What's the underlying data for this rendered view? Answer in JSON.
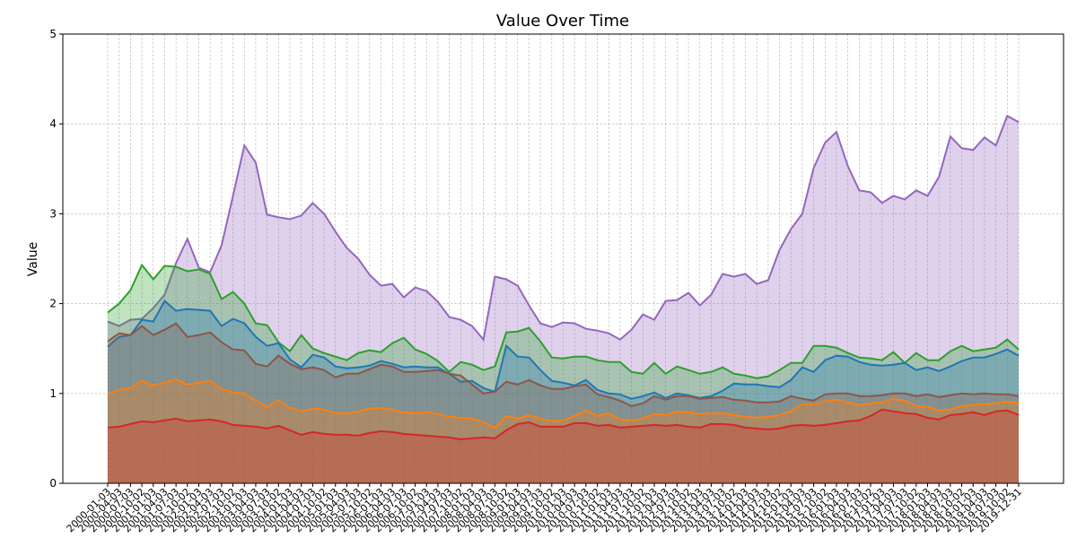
{
  "chart_data": {
    "type": "area",
    "title": "Value Over Time",
    "ylabel": "Value",
    "categories": [
      "2000-01-03",
      "2000-04-03",
      "2000-07-03",
      "2000-10-02",
      "2001-01-03",
      "2001-04-03",
      "2001-07-03",
      "2001-10-02",
      "2002-01-03",
      "2002-04-03",
      "2002-07-03",
      "2002-10-02",
      "2003-01-03",
      "2003-04-03",
      "2003-07-03",
      "2003-10-02",
      "2004-01-03",
      "2004-04-03",
      "2004-07-03",
      "2004-10-02",
      "2005-01-03",
      "2005-04-03",
      "2005-07-03",
      "2005-10-02",
      "2006-01-03",
      "2006-04-03",
      "2006-07-03",
      "2006-10-02",
      "2007-01-03",
      "2007-04-03",
      "2007-07-03",
      "2007-10-02",
      "2008-01-03",
      "2008-04-03",
      "2008-07-03",
      "2008-10-02",
      "2009-01-03",
      "2009-04-03",
      "2009-07-03",
      "2009-10-02",
      "2010-01-03",
      "2010-04-03",
      "2010-07-03",
      "2010-10-02",
      "2011-01-03",
      "2011-04-03",
      "2011-07-03",
      "2011-10-02",
      "2012-01-03",
      "2012-04-03",
      "2012-07-03",
      "2012-10-02",
      "2013-01-03",
      "2013-04-03",
      "2013-07-03",
      "2013-10-02",
      "2014-01-03",
      "2014-04-03",
      "2014-07-03",
      "2014-10-02",
      "2015-01-03",
      "2015-04-03",
      "2015-07-03",
      "2015-10-02",
      "2016-01-03",
      "2016-04-03",
      "2016-07-03",
      "2016-10-02",
      "2017-01-03",
      "2017-04-03",
      "2017-07-03",
      "2017-10-02",
      "2018-01-03",
      "2018-04-03",
      "2018-07-03",
      "2018-10-02",
      "2019-01-03",
      "2019-04-03",
      "2019-07-03",
      "2019-10-02",
      "2019-12-31"
    ],
    "series": [
      {
        "color": "#9467bd",
        "values": [
          1.8,
          1.75,
          1.82,
          1.83,
          1.95,
          2.1,
          2.45,
          2.72,
          2.4,
          2.35,
          2.65,
          3.2,
          3.76,
          3.57,
          2.99,
          2.96,
          2.94,
          2.98,
          3.12,
          3.0,
          2.8,
          2.62,
          2.5,
          2.32,
          2.2,
          2.22,
          2.07,
          2.18,
          2.14,
          2.02,
          1.85,
          1.82,
          1.75,
          1.6,
          2.3,
          2.27,
          2.2,
          1.98,
          1.78,
          1.74,
          1.79,
          1.78,
          1.72,
          1.7,
          1.67,
          1.6,
          1.71,
          1.88,
          1.82,
          2.03,
          2.04,
          2.12,
          1.98,
          2.1,
          2.33,
          2.3,
          2.33,
          2.22,
          2.26,
          2.6,
          2.83,
          3.0,
          3.51,
          3.79,
          3.91,
          3.53,
          3.26,
          3.24,
          3.12,
          3.2,
          3.16,
          3.26,
          3.2,
          3.41,
          3.86,
          3.73,
          3.71,
          3.85,
          3.76,
          4.09,
          4.02
        ]
      },
      {
        "color": "#2ca02c",
        "values": [
          1.9,
          2.0,
          2.15,
          2.43,
          2.27,
          2.42,
          2.41,
          2.36,
          2.38,
          2.33,
          2.05,
          2.13,
          2.0,
          1.78,
          1.76,
          1.57,
          1.47,
          1.65,
          1.5,
          1.45,
          1.41,
          1.37,
          1.45,
          1.48,
          1.46,
          1.56,
          1.62,
          1.49,
          1.44,
          1.36,
          1.24,
          1.35,
          1.32,
          1.26,
          1.3,
          1.68,
          1.69,
          1.73,
          1.58,
          1.4,
          1.39,
          1.41,
          1.41,
          1.37,
          1.35,
          1.35,
          1.24,
          1.22,
          1.34,
          1.22,
          1.3,
          1.26,
          1.22,
          1.24,
          1.29,
          1.22,
          1.2,
          1.17,
          1.19,
          1.26,
          1.34,
          1.34,
          1.53,
          1.53,
          1.51,
          1.45,
          1.4,
          1.39,
          1.37,
          1.46,
          1.34,
          1.45,
          1.37,
          1.37,
          1.47,
          1.53,
          1.47,
          1.49,
          1.51,
          1.6,
          1.49
        ]
      },
      {
        "color": "#1f77b4",
        "values": [
          1.52,
          1.63,
          1.65,
          1.82,
          1.8,
          2.03,
          1.92,
          1.94,
          1.93,
          1.92,
          1.75,
          1.83,
          1.78,
          1.63,
          1.53,
          1.56,
          1.38,
          1.29,
          1.43,
          1.4,
          1.3,
          1.28,
          1.29,
          1.31,
          1.36,
          1.33,
          1.29,
          1.3,
          1.29,
          1.29,
          1.22,
          1.13,
          1.14,
          1.06,
          1.02,
          1.53,
          1.41,
          1.4,
          1.26,
          1.14,
          1.12,
          1.09,
          1.15,
          1.04,
          1.0,
          0.99,
          0.94,
          0.97,
          1.01,
          0.95,
          1.0,
          0.98,
          0.95,
          0.97,
          1.03,
          1.11,
          1.1,
          1.1,
          1.08,
          1.07,
          1.15,
          1.29,
          1.24,
          1.37,
          1.42,
          1.41,
          1.35,
          1.32,
          1.31,
          1.32,
          1.34,
          1.26,
          1.29,
          1.25,
          1.3,
          1.36,
          1.4,
          1.4,
          1.44,
          1.49,
          1.42
        ]
      },
      {
        "color": "#8c564b",
        "values": [
          1.58,
          1.67,
          1.65,
          1.75,
          1.65,
          1.71,
          1.78,
          1.63,
          1.65,
          1.68,
          1.57,
          1.49,
          1.48,
          1.33,
          1.3,
          1.42,
          1.33,
          1.27,
          1.29,
          1.26,
          1.18,
          1.22,
          1.22,
          1.27,
          1.32,
          1.3,
          1.24,
          1.24,
          1.25,
          1.26,
          1.22,
          1.2,
          1.1,
          1.0,
          1.02,
          1.13,
          1.1,
          1.15,
          1.09,
          1.05,
          1.05,
          1.08,
          1.1,
          0.99,
          0.96,
          0.92,
          0.86,
          0.89,
          0.97,
          0.93,
          0.97,
          0.97,
          0.94,
          0.95,
          0.96,
          0.93,
          0.92,
          0.9,
          0.9,
          0.91,
          0.97,
          0.94,
          0.92,
          0.99,
          1.0,
          1.0,
          0.97,
          0.97,
          0.98,
          1.0,
          1.0,
          0.97,
          0.99,
          0.96,
          0.98,
          1.0,
          0.99,
          1.0,
          0.99,
          0.99,
          0.97
        ]
      },
      {
        "color": "#ff7f0e",
        "values": [
          0.99,
          1.04,
          1.06,
          1.14,
          1.09,
          1.12,
          1.16,
          1.1,
          1.12,
          1.14,
          1.05,
          1.01,
          1.0,
          0.92,
          0.85,
          0.92,
          0.84,
          0.8,
          0.83,
          0.82,
          0.78,
          0.78,
          0.8,
          0.83,
          0.84,
          0.82,
          0.79,
          0.78,
          0.79,
          0.77,
          0.74,
          0.73,
          0.72,
          0.68,
          0.62,
          0.75,
          0.72,
          0.76,
          0.72,
          0.69,
          0.7,
          0.75,
          0.81,
          0.75,
          0.78,
          0.71,
          0.7,
          0.72,
          0.77,
          0.76,
          0.8,
          0.79,
          0.77,
          0.78,
          0.78,
          0.76,
          0.74,
          0.73,
          0.74,
          0.76,
          0.8,
          0.88,
          0.88,
          0.91,
          0.93,
          0.9,
          0.87,
          0.89,
          0.9,
          0.94,
          0.92,
          0.86,
          0.85,
          0.81,
          0.82,
          0.86,
          0.87,
          0.88,
          0.89,
          0.91,
          0.89
        ]
      },
      {
        "color": "#d62728",
        "values": [
          0.62,
          0.63,
          0.66,
          0.69,
          0.68,
          0.7,
          0.72,
          0.69,
          0.7,
          0.71,
          0.69,
          0.65,
          0.64,
          0.63,
          0.61,
          0.64,
          0.59,
          0.54,
          0.57,
          0.55,
          0.54,
          0.54,
          0.53,
          0.56,
          0.58,
          0.57,
          0.55,
          0.54,
          0.53,
          0.52,
          0.51,
          0.49,
          0.5,
          0.51,
          0.5,
          0.59,
          0.66,
          0.68,
          0.63,
          0.63,
          0.63,
          0.67,
          0.67,
          0.64,
          0.65,
          0.62,
          0.63,
          0.64,
          0.65,
          0.64,
          0.65,
          0.63,
          0.62,
          0.66,
          0.66,
          0.65,
          0.62,
          0.61,
          0.6,
          0.61,
          0.64,
          0.65,
          0.64,
          0.65,
          0.67,
          0.69,
          0.7,
          0.75,
          0.82,
          0.8,
          0.78,
          0.77,
          0.73,
          0.71,
          0.76,
          0.77,
          0.79,
          0.76,
          0.8,
          0.81,
          0.76
        ]
      }
    ],
    "ylim": [
      0,
      5
    ],
    "yticks": [
      0,
      1,
      2,
      3,
      4,
      5
    ],
    "grid": true,
    "fill_alpha": 0.3
  }
}
